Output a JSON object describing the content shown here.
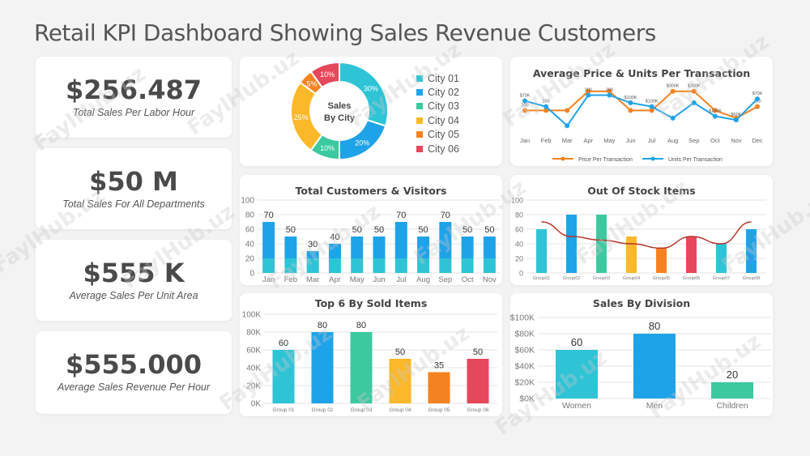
{
  "title": "Retail KPI Dashboard Showing Sales Revenue Customers",
  "kpis": [
    {
      "value": "$256.487",
      "label": "Total Sales Per Labor Hour"
    },
    {
      "value": "$50 M",
      "label": "Total Sales For All Departments"
    },
    {
      "value": "$555 K",
      "label": "Average Sales Per Unit Area"
    },
    {
      "value": "$555.000",
      "label": "Average Sales Revenue Per Hour"
    }
  ],
  "watermark": "FaylHub.uz",
  "chart_data": [
    {
      "type": "pie",
      "title": "Sales By City",
      "center_label_1": "Sales",
      "center_label_2": "By City",
      "categories": [
        "City 01",
        "City 02",
        "City 03",
        "City 04",
        "City 05",
        "City 06"
      ],
      "values": [
        30,
        20,
        10,
        25,
        5,
        10
      ],
      "value_labels": [
        "30%",
        "20%",
        "10%",
        "25%",
        "5%",
        "10%"
      ],
      "colors": [
        "#2ec4d6",
        "#1fa3e8",
        "#3cc9a0",
        "#fbb829",
        "#f58220",
        "#e5485b"
      ]
    },
    {
      "type": "line",
      "title": "Average Price & Units Per Transaction",
      "categories": [
        "Jan",
        "Feb",
        "Mar",
        "Apr",
        "May",
        "Jun",
        "Jul",
        "Aug",
        "Sep",
        "Oct",
        "Nov",
        "Dec"
      ],
      "series": [
        {
          "name": "Price Per Transaction",
          "color": "#f58220",
          "values": [
            200,
            200,
            200,
            300,
            300,
            200,
            200,
            300,
            300,
            200,
            160,
            220
          ],
          "labels": [
            "200",
            "",
            "",
            "",
            "",
            "",
            "",
            "$300K",
            "$300K",
            "",
            "",
            "220"
          ]
        },
        {
          "name": "Units Per Transaction",
          "color": "#1fa3e8",
          "values": [
            250,
            220,
            120,
            280,
            280,
            240,
            220,
            160,
            240,
            170,
            150,
            260
          ],
          "labels": [
            "$70K",
            "100",
            "",
            "300",
            "300",
            "$100K",
            "$100K",
            "",
            "",
            "$100K",
            "$50K",
            "$70K"
          ]
        }
      ]
    },
    {
      "type": "bar",
      "title": "Total Customers & Visitors",
      "categories": [
        "Jan",
        "Feb",
        "Mar",
        "Apr",
        "May",
        "Jun",
        "Jul",
        "Aug",
        "Sep",
        "Oct",
        "Nov"
      ],
      "values": [
        70,
        50,
        30,
        40,
        50,
        50,
        70,
        50,
        70,
        50,
        50
      ],
      "yticks": [
        0,
        20,
        40,
        60,
        80,
        100
      ],
      "ylim": [
        0,
        100
      ]
    },
    {
      "type": "bar",
      "title": "Out Of Stock Items",
      "categories": [
        "Group01",
        "Group02",
        "Group03",
        "Group04",
        "Group05",
        "Group06",
        "Group07",
        "Group08"
      ],
      "values": [
        60,
        80,
        80,
        50,
        35,
        50,
        40,
        60
      ],
      "colors": [
        "#2ec4d6",
        "#1fa3e8",
        "#3cc9a0",
        "#fbb829",
        "#f58220",
        "#e5485b",
        "#2ec4d6",
        "#1fa3e8"
      ],
      "trend": [
        70,
        50,
        45,
        40,
        34,
        50,
        40,
        70
      ],
      "yticks": [
        0,
        20,
        40,
        60,
        80,
        100
      ],
      "ylim": [
        0,
        100
      ]
    },
    {
      "type": "bar",
      "title": "Top 6 By Sold Items",
      "categories": [
        "Group 01",
        "Group 02",
        "Group 03",
        "Group 04",
        "Group 05",
        "Group 06"
      ],
      "values": [
        60,
        80,
        80,
        50,
        35,
        50
      ],
      "colors": [
        "#2ec4d6",
        "#1fa3e8",
        "#3cc9a0",
        "#fbb829",
        "#f58220",
        "#e5485b"
      ],
      "yticks": [
        "0K",
        "20K",
        "40K",
        "60K",
        "80K",
        "100K"
      ],
      "ylim": [
        0,
        100
      ]
    },
    {
      "type": "bar",
      "title": "Sales By Division",
      "categories": [
        "Women",
        "Men",
        "Children"
      ],
      "values": [
        60,
        80,
        20
      ],
      "colors": [
        "#2ec4d6",
        "#1fa3e8",
        "#3cc9a0"
      ],
      "yticks": [
        "$0K",
        "$20K",
        "$40K",
        "$60K",
        "$80K",
        "$100K"
      ],
      "ylim": [
        0,
        100
      ]
    }
  ]
}
